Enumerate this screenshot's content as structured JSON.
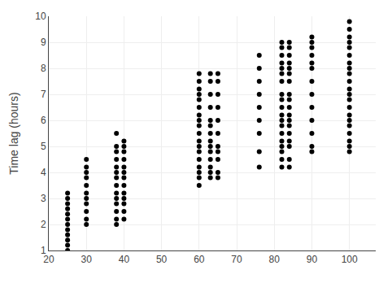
{
  "chart_data": {
    "type": "scatter",
    "ylabel": "Time lag (hours)",
    "xlim": [
      20,
      107
    ],
    "ylim": [
      1,
      10
    ],
    "xticks": [
      20,
      30,
      40,
      50,
      60,
      70,
      80,
      90,
      100
    ],
    "yticks": [
      1,
      2,
      3,
      4,
      5,
      6,
      7,
      8,
      9,
      10
    ],
    "grid": true,
    "marker": "circle",
    "color": "black",
    "x": [
      25,
      25,
      25,
      25,
      25,
      25,
      25,
      25,
      25,
      25,
      25,
      25,
      30,
      30,
      30,
      30,
      30,
      30,
      30,
      30,
      30,
      30,
      30,
      38,
      38,
      38,
      38,
      38,
      38,
      38,
      38,
      38,
      38,
      38,
      38,
      38,
      38,
      40,
      40,
      40,
      40,
      40,
      40,
      40,
      40,
      40,
      40,
      40,
      40,
      40,
      60,
      60,
      60,
      60,
      60,
      60,
      60,
      60,
      60,
      60,
      60,
      60,
      60,
      60,
      60,
      60,
      60,
      60,
      63,
      63,
      63,
      63,
      63,
      63,
      63,
      63,
      63,
      63,
      63,
      63,
      63,
      63,
      65,
      65,
      65,
      65,
      65,
      65,
      65,
      65,
      65,
      65,
      65,
      76,
      76,
      76,
      76,
      76,
      76,
      76,
      76,
      76,
      82,
      82,
      82,
      82,
      82,
      82,
      82,
      82,
      82,
      82,
      82,
      82,
      82,
      82,
      82,
      82,
      82,
      82,
      82,
      84,
      84,
      84,
      84,
      84,
      84,
      84,
      84,
      84,
      84,
      84,
      84,
      84,
      84,
      84,
      84,
      84,
      84,
      90,
      90,
      90,
      90,
      90,
      90,
      90,
      90,
      90,
      90,
      90,
      90,
      90,
      100,
      100,
      100,
      100,
      100,
      100,
      100,
      100,
      100,
      100,
      100,
      100,
      100,
      100,
      100,
      100,
      100,
      100,
      100,
      100,
      100
    ],
    "values": [
      1.0,
      1.2,
      1.4,
      1.6,
      1.8,
      2.0,
      2.2,
      2.4,
      2.6,
      2.8,
      3.0,
      3.2,
      2.0,
      2.2,
      2.5,
      2.8,
      3.0,
      3.2,
      3.5,
      3.8,
      4.0,
      4.2,
      4.5,
      2.0,
      2.2,
      2.5,
      2.8,
      3.0,
      3.2,
      3.5,
      3.8,
      4.0,
      4.2,
      4.5,
      4.8,
      5.0,
      5.5,
      2.2,
      2.5,
      2.8,
      3.0,
      3.2,
      3.5,
      3.8,
      4.0,
      4.2,
      4.5,
      4.8,
      5.0,
      5.2,
      3.5,
      3.8,
      4.0,
      4.2,
      4.5,
      4.8,
      5.0,
      5.2,
      5.5,
      5.8,
      6.0,
      6.2,
      6.5,
      6.8,
      7.0,
      7.2,
      7.5,
      7.8,
      3.8,
      4.0,
      4.2,
      4.5,
      4.8,
      5.0,
      5.2,
      5.5,
      5.8,
      6.0,
      6.5,
      7.0,
      7.5,
      7.8,
      3.8,
      4.0,
      4.5,
      4.8,
      5.0,
      5.5,
      6.0,
      6.5,
      7.0,
      7.5,
      7.8,
      4.2,
      4.8,
      5.5,
      6.0,
      6.5,
      7.0,
      7.5,
      8.0,
      8.5,
      4.2,
      4.5,
      4.8,
      5.0,
      5.2,
      5.5,
      5.8,
      6.0,
      6.2,
      6.5,
      6.8,
      7.0,
      7.5,
      7.8,
      8.0,
      8.2,
      8.5,
      8.8,
      9.0,
      4.2,
      4.5,
      5.0,
      5.2,
      5.5,
      5.8,
      6.0,
      6.2,
      6.5,
      6.8,
      7.0,
      7.5,
      7.8,
      8.0,
      8.2,
      8.5,
      8.8,
      9.0,
      4.8,
      5.0,
      5.5,
      6.0,
      6.5,
      7.0,
      7.5,
      8.0,
      8.2,
      8.5,
      8.8,
      9.0,
      9.2,
      4.8,
      5.0,
      5.2,
      5.5,
      5.8,
      6.0,
      6.2,
      6.5,
      6.8,
      7.0,
      7.2,
      7.5,
      7.8,
      8.0,
      8.2,
      8.5,
      8.8,
      9.0,
      9.2,
      9.5,
      9.8
    ]
  }
}
